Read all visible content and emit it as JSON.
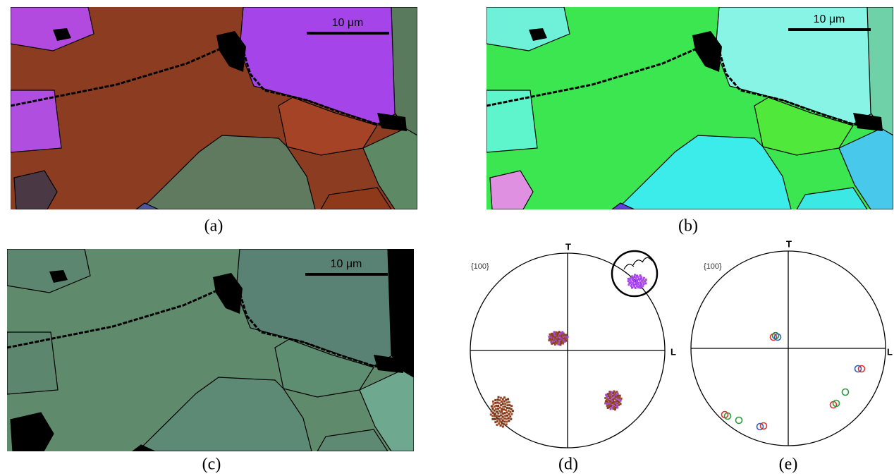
{
  "panels": [
    {
      "label": "(a)",
      "scale_bar": "10 μm"
    },
    {
      "label": "(b)",
      "scale_bar": "10 μm"
    },
    {
      "label": "(c)",
      "scale_bar": "10 μm"
    },
    {
      "label": "(d)",
      "projection": "{100}",
      "axis_top": "T",
      "axis_right": "L"
    },
    {
      "label": "(e)",
      "projection": "{100}",
      "axis_top": "T",
      "axis_right": "L"
    }
  ]
}
